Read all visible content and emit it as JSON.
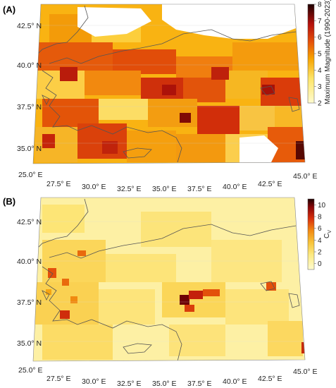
{
  "panels": [
    {
      "tag": "(A)",
      "colorbar_title": "Maximum Magnitude (1990-2023)",
      "colorbar_ticks": [
        "2",
        "3",
        "4",
        "5",
        "6",
        "7",
        "8"
      ],
      "colorbar_range": [
        2,
        8
      ]
    },
    {
      "tag": "(B)",
      "colorbar_title": "C",
      "colorbar_title_sub": "V",
      "colorbar_ticks": [
        "0",
        "2",
        "4",
        "6",
        "8",
        "10"
      ],
      "colorbar_range": [
        -1,
        11
      ]
    }
  ],
  "lon_ticks": [
    "25.0° E",
    "27.5° E",
    "30.0° E",
    "32.5° E",
    "35.0° E",
    "37.5° E",
    "40.0° E",
    "42.5° E",
    "45.0° E"
  ],
  "lat_ticks": [
    "35.0° N",
    "37.5° N",
    "40.0° N",
    "42.5° N"
  ],
  "colors": {
    "magnitude_low": "#fffbd0",
    "magnitude_mid": "#f7a300",
    "magnitude_high": "#c8160c",
    "magnitude_max": "#1e0000",
    "coastline": "#555555"
  },
  "chart_data": [
    {
      "type": "heatmap",
      "title": "",
      "xlabel": "",
      "ylabel": "",
      "x_range": [
        25,
        45
      ],
      "y_range": [
        34.5,
        43.5
      ],
      "value_range": [
        2,
        8
      ],
      "colorbar_label": "Maximum Magnitude (1990-2023)"
    },
    {
      "type": "heatmap",
      "title": "",
      "xlabel": "",
      "ylabel": "",
      "x_range": [
        25,
        45
      ],
      "y_range": [
        34.5,
        43.5
      ],
      "value_range": [
        -1,
        11
      ],
      "colorbar_label": "Cv"
    }
  ]
}
